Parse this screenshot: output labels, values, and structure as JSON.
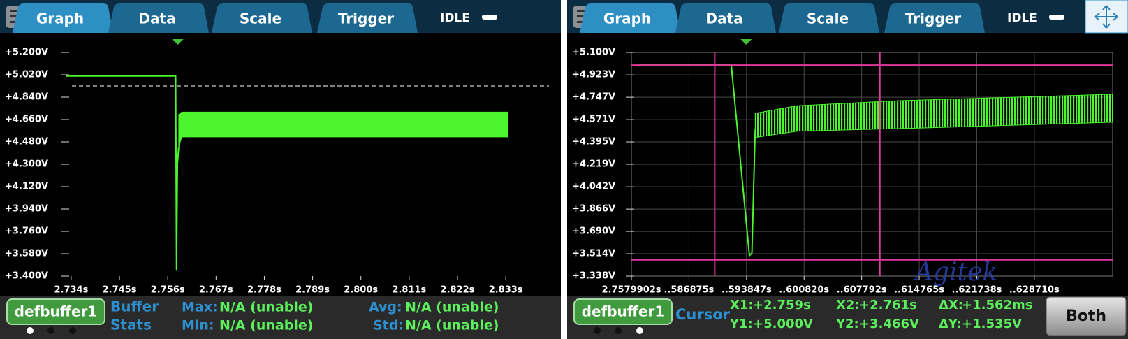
{
  "panels": [
    {
      "tabs": [
        "Graph",
        "Data",
        "Scale",
        "Trigger"
      ],
      "status": "IDLE",
      "chart_data": {
        "type": "line",
        "ylim": [
          3.4,
          5.2
        ],
        "yticks": [
          {
            "value": 5.2,
            "label": "+5.200V"
          },
          {
            "value": 5.02,
            "label": "+5.020V"
          },
          {
            "value": 4.84,
            "label": "+4.840V"
          },
          {
            "value": 4.66,
            "label": "+4.660V"
          },
          {
            "value": 4.48,
            "label": "+4.480V"
          },
          {
            "value": 4.3,
            "label": "+4.300V"
          },
          {
            "value": 4.12,
            "label": "+4.120V"
          },
          {
            "value": 3.94,
            "label": "+3.940V"
          },
          {
            "value": 3.76,
            "label": "+3.760V"
          },
          {
            "value": 3.58,
            "label": "+3.580V"
          },
          {
            "value": 3.4,
            "label": "+3.400V"
          }
        ],
        "xlim": [
          2.7329,
          2.8438
        ],
        "xticks": [
          {
            "value": 2.734,
            "label": "2.734s"
          },
          {
            "value": 2.745,
            "label": "2.745s"
          },
          {
            "value": 2.756,
            "label": "2.756s"
          },
          {
            "value": 2.767,
            "label": "2.767s"
          },
          {
            "value": 2.778,
            "label": "2.778s"
          },
          {
            "value": 2.789,
            "label": "2.789s"
          },
          {
            "value": 2.8,
            "label": "2.800s"
          },
          {
            "value": 2.811,
            "label": "2.811s"
          },
          {
            "value": 2.822,
            "label": "2.822s"
          },
          {
            "value": 2.833,
            "label": "2.833s"
          }
        ],
        "grid": false,
        "series": [
          {
            "color": "#4cf52e",
            "x": [
              2.7329,
              2.7578,
              2.758,
              2.7582,
              2.7585
            ],
            "values": [
              5.01,
              5.01,
              3.45,
              4.3,
              4.44
            ]
          }
        ],
        "band": {
          "color": "#4cf52e",
          "x": [
            2.7585,
            2.7592,
            2.8334
          ],
          "upper": [
            4.7,
            4.72,
            4.72
          ],
          "lower": [
            4.44,
            4.52,
            4.52
          ]
        },
        "threshold": 4.93,
        "trigger_x": 2.7583
      },
      "buffer": "defbuffer1",
      "stats_title": [
        "Buffer",
        "Stats"
      ],
      "stats": [
        {
          "label": "Max:",
          "value": "N/A (unable)"
        },
        {
          "label": "Min:",
          "value": "N/A (unable)"
        },
        {
          "label": "Avg:",
          "value": "N/A (unable)"
        },
        {
          "label": "Std:",
          "value": "N/A (unable)"
        }
      ]
    },
    {
      "tabs": [
        "Graph",
        "Data",
        "Scale",
        "Trigger"
      ],
      "status": "IDLE",
      "chart_data": {
        "type": "line",
        "ylim": [
          3.338,
          5.1
        ],
        "yticks": [
          {
            "value": 5.1,
            "label": "+5.100V"
          },
          {
            "value": 4.923,
            "label": "+4.923V"
          },
          {
            "value": 4.747,
            "label": "+4.747V"
          },
          {
            "value": 4.571,
            "label": "+4.571V"
          },
          {
            "value": 4.395,
            "label": "+4.395V"
          },
          {
            "value": 4.219,
            "label": "+4.219V"
          },
          {
            "value": 4.042,
            "label": "+4.042V"
          },
          {
            "value": 3.866,
            "label": "+3.866V"
          },
          {
            "value": 3.69,
            "label": "+3.690V"
          },
          {
            "value": 3.514,
            "label": "+3.514V"
          },
          {
            "value": 3.338,
            "label": "+3.338V"
          }
        ],
        "xlim": [
          2.75799,
          2.76382
        ],
        "xticks": [
          {
            "value": 2.7579902,
            "label": "2.7579902s"
          },
          {
            "value": 2.7586875,
            "label": "..586875s"
          },
          {
            "value": 2.7593847,
            "label": "..593847s"
          },
          {
            "value": 2.760082,
            "label": "..600820s"
          },
          {
            "value": 2.7607792,
            "label": "..607792s"
          },
          {
            "value": 2.7614765,
            "label": "..614765s"
          },
          {
            "value": 2.7621738,
            "label": "..621738s"
          },
          {
            "value": 2.762871,
            "label": "..628710s"
          }
        ],
        "grid": true,
        "series": [
          {
            "color": "#4cf52e",
            "x": [
              2.75808,
              2.7592,
              2.75942,
              2.75945,
              2.75949
            ],
            "values": [
              5.0,
              5.0,
              3.5,
              3.52,
              4.5
            ]
          }
        ],
        "band": {
          "color": "#4cf52e",
          "x": [
            2.75949,
            2.76,
            2.76125,
            2.76382
          ],
          "upper": [
            4.62,
            4.68,
            4.72,
            4.77
          ],
          "lower": [
            4.43,
            4.48,
            4.5,
            4.55
          ]
        },
        "trigger_x": 2.75938,
        "cursors": {
          "color": "#e03a9c",
          "x": [
            2.759,
            2.761
          ],
          "y": [
            5.0,
            3.466
          ]
        }
      },
      "buffer": "defbuffer1",
      "cursor_title": "Cursor",
      "readouts": [
        {
          "label": "X1:",
          "value": "+2.759s"
        },
        {
          "label": "Y1:",
          "value": "+5.000V"
        },
        {
          "label": "X2:",
          "value": "+2.761s"
        },
        {
          "label": "Y2:",
          "value": "+3.466V"
        },
        {
          "label": "ΔX:",
          "value": "+1.562ms"
        },
        {
          "label": "ΔY:",
          "value": "+1.535V"
        }
      ],
      "button": "Both",
      "watermark": "Agitek"
    }
  ]
}
